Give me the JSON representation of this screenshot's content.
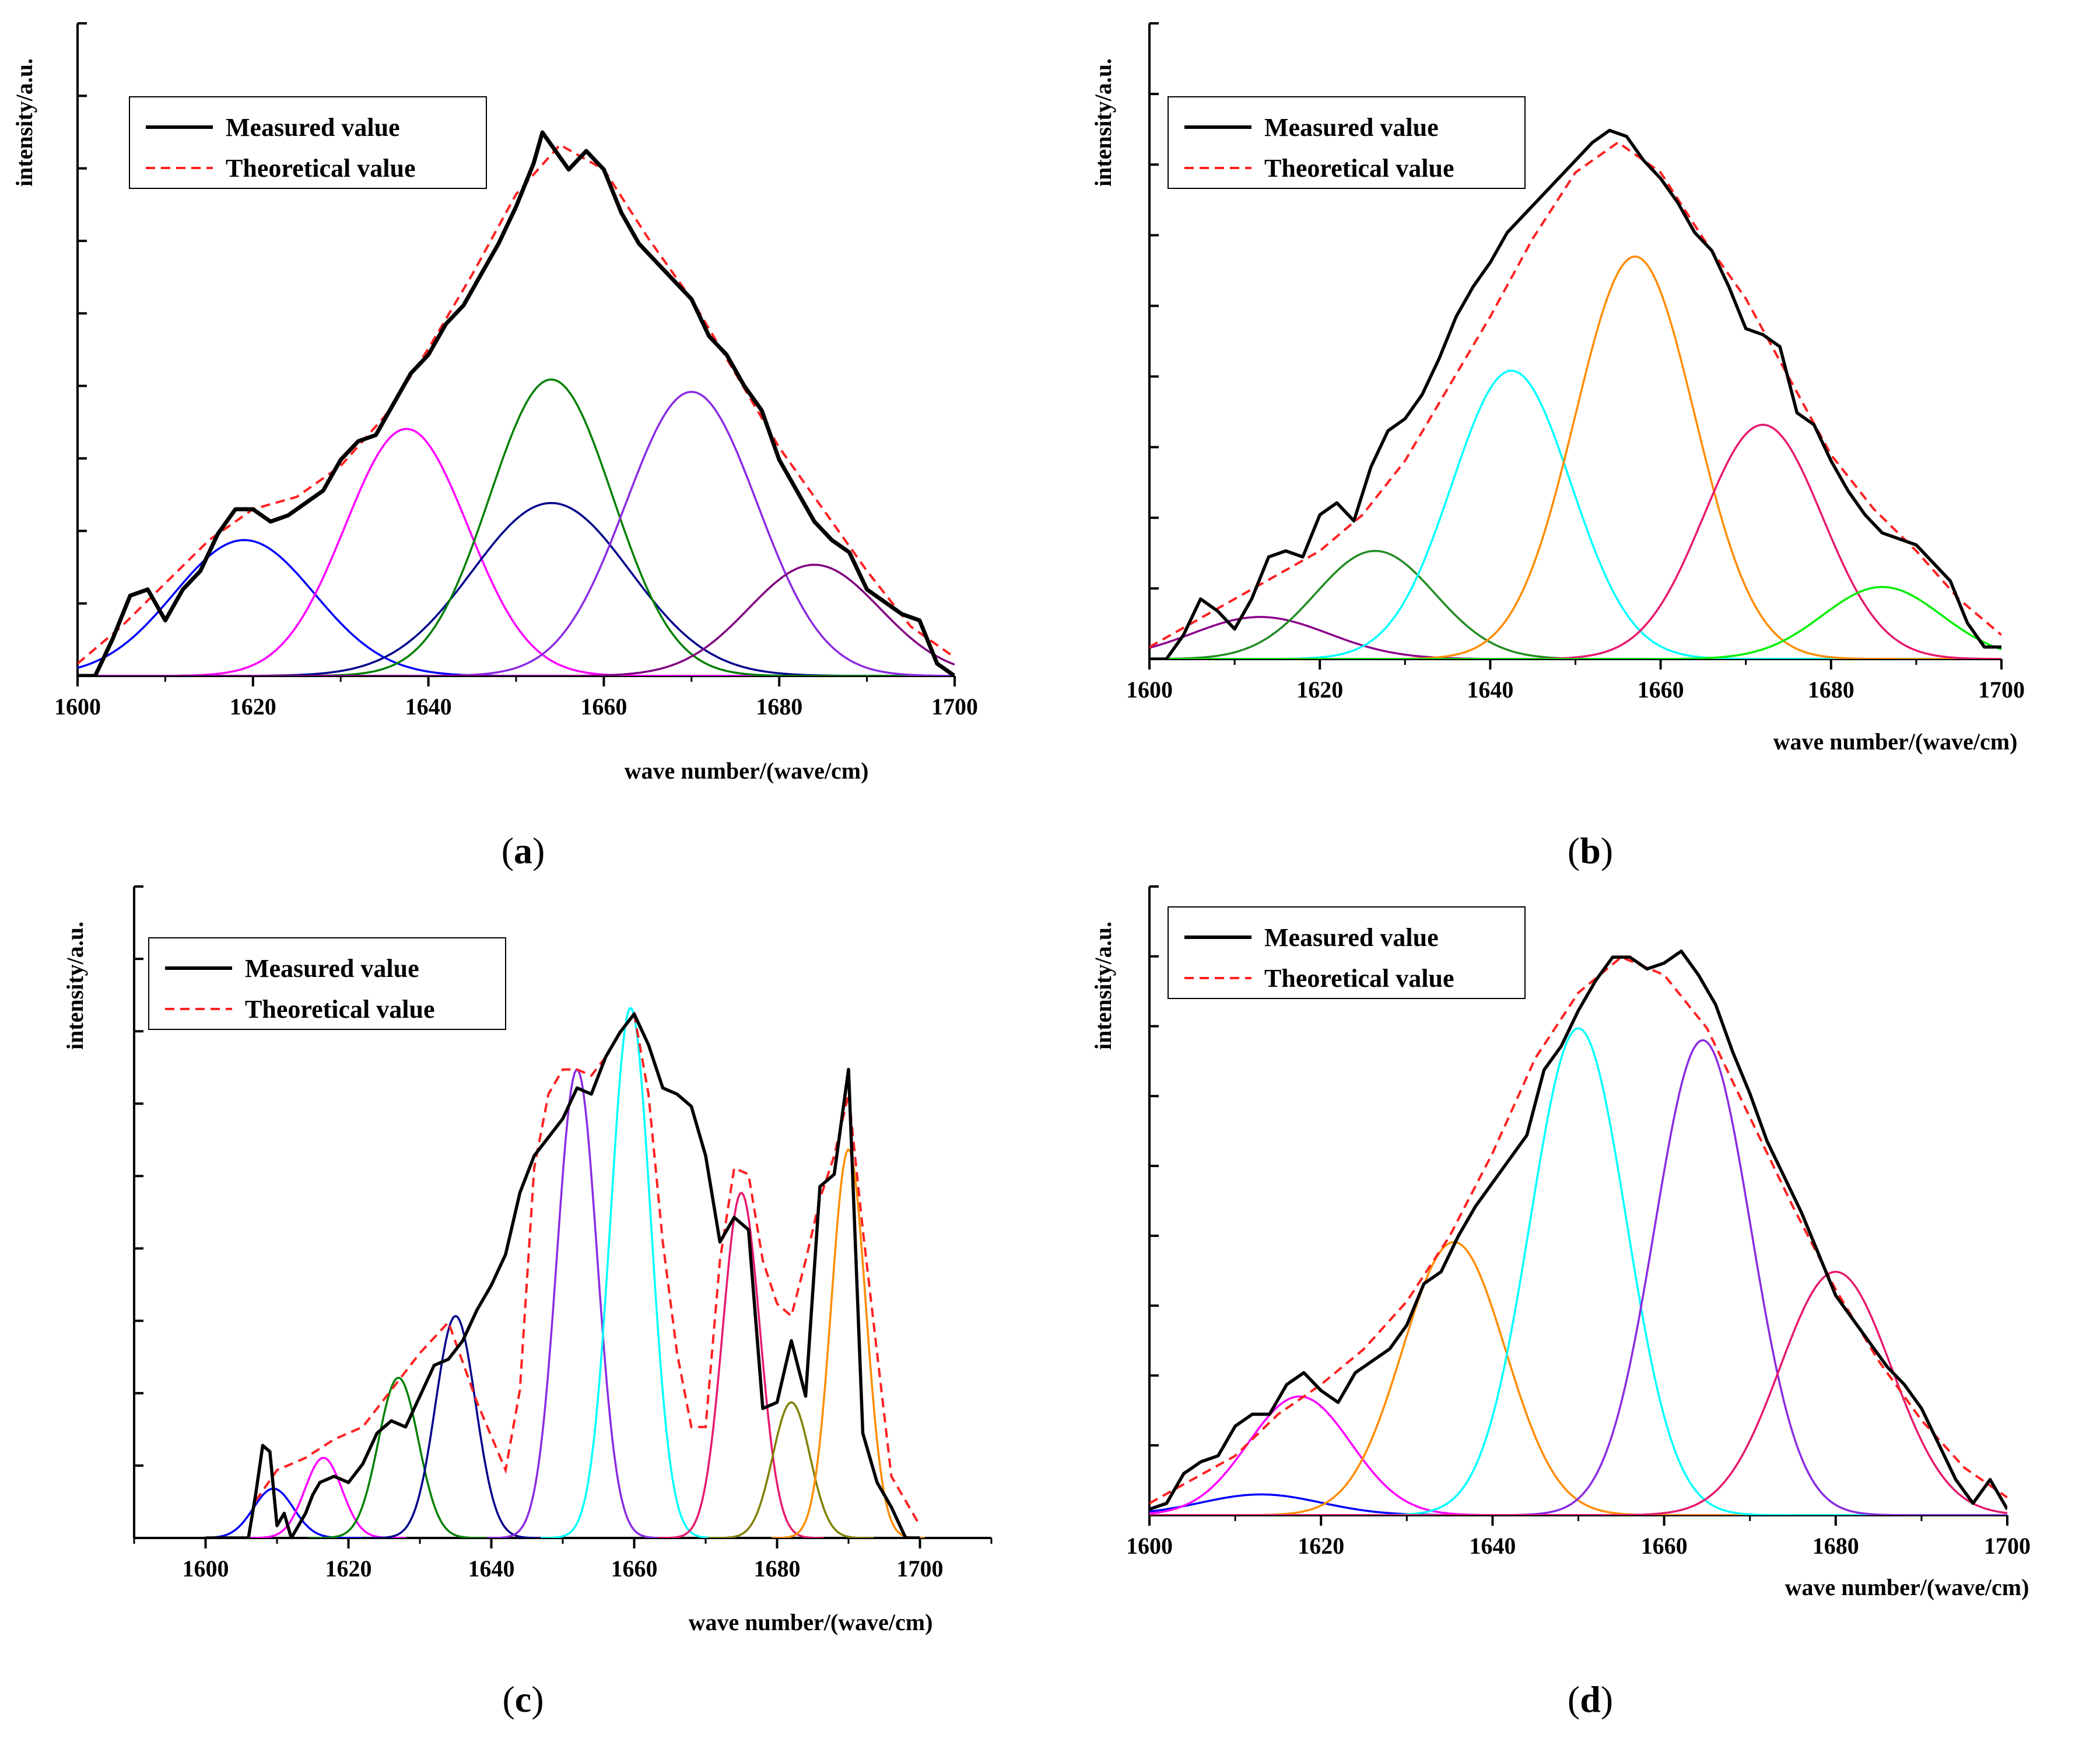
{
  "chart_data": [
    {
      "panel": "a",
      "type": "line",
      "ylabel": "intensity/a.u.",
      "xlabel": "wave number/(wave/cm)",
      "xlim": [
        1600,
        1700
      ],
      "xticks": [
        "1600",
        "1620",
        "1640",
        "1660",
        "1680",
        "1700"
      ],
      "ylim": [
        0,
        1
      ],
      "legend": {
        "position": "top-left",
        "entries": [
          "Measured value",
          "Theoretical value"
        ]
      },
      "measured": {
        "name": "Measured value",
        "x": [
          1600,
          1602,
          1604,
          1606,
          1608,
          1610,
          1612,
          1614,
          1616,
          1618,
          1620,
          1622,
          1624,
          1626,
          1628,
          1630,
          1632,
          1634,
          1636,
          1638,
          1640,
          1642,
          1644,
          1646,
          1648,
          1650,
          1652,
          1653,
          1654,
          1656,
          1658,
          1660,
          1662,
          1664,
          1666,
          1668,
          1670,
          1672,
          1674,
          1676,
          1678,
          1680,
          1682,
          1684,
          1686,
          1688,
          1690,
          1692,
          1694,
          1696,
          1698,
          1700
        ],
        "y": [
          0.0,
          0.0,
          0.06,
          0.13,
          0.14,
          0.09,
          0.14,
          0.17,
          0.23,
          0.27,
          0.27,
          0.25,
          0.26,
          0.28,
          0.3,
          0.35,
          0.38,
          0.39,
          0.44,
          0.49,
          0.52,
          0.57,
          0.6,
          0.65,
          0.7,
          0.76,
          0.83,
          0.88,
          0.86,
          0.82,
          0.85,
          0.82,
          0.75,
          0.7,
          0.67,
          0.64,
          0.61,
          0.55,
          0.52,
          0.47,
          0.43,
          0.35,
          0.3,
          0.25,
          0.22,
          0.2,
          0.14,
          0.12,
          0.1,
          0.09,
          0.02,
          0.0
        ]
      },
      "theoretical": {
        "name": "Theoretical value",
        "x": [
          1600,
          1605,
          1610,
          1615,
          1620,
          1625,
          1630,
          1635,
          1640,
          1645,
          1650,
          1655,
          1660,
          1665,
          1670,
          1675,
          1680,
          1685,
          1690,
          1695,
          1700
        ],
        "y": [
          0.02,
          0.08,
          0.15,
          0.22,
          0.27,
          0.29,
          0.34,
          0.42,
          0.53,
          0.65,
          0.78,
          0.86,
          0.82,
          0.71,
          0.61,
          0.49,
          0.37,
          0.27,
          0.17,
          0.08,
          0.03
        ]
      },
      "components": [
        {
          "color": "#0000ff",
          "center": 1619,
          "amplitude": 0.22,
          "sigma": 8
        },
        {
          "color": "#ff00ff",
          "center": 1637.5,
          "amplitude": 0.4,
          "sigma": 7
        },
        {
          "color": "#00008b",
          "center": 1654,
          "amplitude": 0.28,
          "sigma": 9
        },
        {
          "color": "#008000",
          "center": 1654,
          "amplitude": 0.48,
          "sigma": 7
        },
        {
          "color": "#8a2be2",
          "center": 1670,
          "amplitude": 0.46,
          "sigma": 7.5
        },
        {
          "color": "#800080",
          "center": 1684,
          "amplitude": 0.18,
          "sigma": 7.5
        }
      ],
      "label": "(a)"
    },
    {
      "panel": "b",
      "type": "line",
      "ylabel": "intensity/a.u.",
      "xlabel": "wave number/(wave/cm)",
      "xlim": [
        1600,
        1700
      ],
      "xticks": [
        "1600",
        "1620",
        "1640",
        "1660",
        "1680",
        "1700"
      ],
      "ylim": [
        0,
        1
      ],
      "legend": {
        "position": "top-left",
        "entries": [
          "Measured value",
          "Theoretical value"
        ]
      },
      "measured": {
        "name": "Measured value",
        "x": [
          1600,
          1602,
          1604,
          1606,
          1608,
          1610,
          1612,
          1614,
          1616,
          1618,
          1620,
          1622,
          1624,
          1626,
          1628,
          1630,
          1632,
          1634,
          1636,
          1638,
          1640,
          1642,
          1644,
          1646,
          1648,
          1650,
          1652,
          1654,
          1656,
          1658,
          1660,
          1662,
          1664,
          1666,
          1668,
          1670,
          1672,
          1674,
          1676,
          1678,
          1680,
          1682,
          1684,
          1686,
          1688,
          1690,
          1692,
          1694,
          1696,
          1698,
          1700
        ],
        "y": [
          0.0,
          0.0,
          0.04,
          0.1,
          0.08,
          0.05,
          0.1,
          0.17,
          0.18,
          0.17,
          0.24,
          0.26,
          0.23,
          0.32,
          0.38,
          0.4,
          0.44,
          0.5,
          0.57,
          0.62,
          0.66,
          0.71,
          0.74,
          0.77,
          0.8,
          0.83,
          0.86,
          0.88,
          0.87,
          0.83,
          0.8,
          0.76,
          0.71,
          0.68,
          0.62,
          0.55,
          0.54,
          0.52,
          0.41,
          0.39,
          0.33,
          0.28,
          0.24,
          0.21,
          0.2,
          0.19,
          0.16,
          0.13,
          0.06,
          0.02,
          0.02
        ]
      },
      "theoretical": {
        "name": "Theoretical value",
        "x": [
          1600,
          1605,
          1610,
          1615,
          1620,
          1625,
          1630,
          1635,
          1640,
          1645,
          1650,
          1655,
          1660,
          1665,
          1670,
          1675,
          1680,
          1685,
          1690,
          1695,
          1700
        ],
        "y": [
          0.02,
          0.06,
          0.1,
          0.14,
          0.18,
          0.24,
          0.33,
          0.45,
          0.57,
          0.7,
          0.81,
          0.86,
          0.81,
          0.7,
          0.6,
          0.47,
          0.34,
          0.25,
          0.18,
          0.1,
          0.04
        ]
      },
      "components": [
        {
          "color": "#8b008b",
          "center": 1613,
          "amplitude": 0.07,
          "sigma": 8
        },
        {
          "color": "#228b22",
          "center": 1626.5,
          "amplitude": 0.18,
          "sigma": 7
        },
        {
          "color": "#00ffff",
          "center": 1642.5,
          "amplitude": 0.48,
          "sigma": 7
        },
        {
          "color": "#ff8c00",
          "center": 1657,
          "amplitude": 0.67,
          "sigma": 7
        },
        {
          "color": "#e6196e",
          "center": 1672,
          "amplitude": 0.39,
          "sigma": 7
        },
        {
          "color": "#00ee00",
          "center": 1686,
          "amplitude": 0.12,
          "sigma": 7
        }
      ],
      "label": "(b)"
    },
    {
      "panel": "c",
      "type": "line",
      "ylabel": "intensity/a.u.",
      "xlabel": "wave number/(wave/cm)",
      "xlim": [
        1590,
        1710
      ],
      "xticks": [
        "1600",
        "1620",
        "1640",
        "1660",
        "1680",
        "1700"
      ],
      "ylim": [
        0,
        1
      ],
      "legend": {
        "position": "top-left",
        "entries": [
          "Measured value",
          "Theoretical value"
        ]
      },
      "measured": {
        "name": "Measured value",
        "x": [
          1600,
          1606,
          1607,
          1608,
          1609,
          1610,
          1611,
          1612,
          1613,
          1614,
          1615,
          1616,
          1618,
          1620,
          1622,
          1624,
          1626,
          1628,
          1630,
          1632,
          1634,
          1636,
          1638,
          1640,
          1642,
          1644,
          1646,
          1648,
          1650,
          1652,
          1654,
          1656,
          1658,
          1660,
          1662,
          1664,
          1666,
          1668,
          1670,
          1672,
          1674,
          1676,
          1678,
          1680,
          1682,
          1684,
          1686,
          1688,
          1690,
          1692,
          1694,
          1696,
          1698,
          1700
        ],
        "y": [
          0,
          0,
          0.07,
          0.15,
          0.14,
          0.02,
          0.04,
          0.0,
          0.02,
          0.04,
          0.07,
          0.09,
          0.1,
          0.09,
          0.12,
          0.17,
          0.19,
          0.18,
          0.23,
          0.28,
          0.29,
          0.32,
          0.37,
          0.41,
          0.46,
          0.56,
          0.62,
          0.65,
          0.68,
          0.73,
          0.72,
          0.78,
          0.82,
          0.85,
          0.8,
          0.73,
          0.72,
          0.7,
          0.62,
          0.48,
          0.52,
          0.5,
          0.21,
          0.22,
          0.32,
          0.23,
          0.57,
          0.59,
          0.76,
          0.17,
          0.09,
          0.05,
          0.0,
          0.0
        ]
      },
      "theoretical": {
        "name": "Theoretical value",
        "x": [
          1607,
          1610,
          1614,
          1618,
          1622,
          1626,
          1630,
          1634,
          1638,
          1642,
          1644,
          1646,
          1648,
          1650,
          1652,
          1654,
          1656,
          1658,
          1660,
          1662,
          1664,
          1666,
          1668,
          1670,
          1672,
          1674,
          1676,
          1678,
          1680,
          1682,
          1684,
          1686,
          1688,
          1690,
          1692,
          1696,
          1700
        ],
        "y": [
          0.06,
          0.11,
          0.13,
          0.16,
          0.18,
          0.24,
          0.3,
          0.35,
          0.22,
          0.11,
          0.24,
          0.6,
          0.72,
          0.76,
          0.76,
          0.75,
          0.78,
          0.82,
          0.85,
          0.72,
          0.48,
          0.3,
          0.18,
          0.18,
          0.45,
          0.6,
          0.59,
          0.45,
          0.38,
          0.36,
          0.45,
          0.55,
          0.62,
          0.72,
          0.5,
          0.1,
          0.02
        ]
      },
      "components": [
        {
          "color": "#0000ff",
          "center": 1609.5,
          "amplitude": 0.08,
          "sigma": 2.8
        },
        {
          "color": "#ff00ff",
          "center": 1616.5,
          "amplitude": 0.13,
          "sigma": 2.6
        },
        {
          "color": "#008000",
          "center": 1627,
          "amplitude": 0.26,
          "sigma": 2.8
        },
        {
          "color": "#00008b",
          "center": 1635,
          "amplitude": 0.36,
          "sigma": 2.8
        },
        {
          "color": "#8a2be2",
          "center": 1652,
          "amplitude": 0.76,
          "sigma": 2.8
        },
        {
          "color": "#00ffff",
          "center": 1659.5,
          "amplitude": 0.86,
          "sigma": 2.8
        },
        {
          "color": "#e6196e",
          "center": 1675,
          "amplitude": 0.56,
          "sigma": 2.6
        },
        {
          "color": "#808000",
          "center": 1682,
          "amplitude": 0.22,
          "sigma": 2.6
        },
        {
          "color": "#ff8c00",
          "center": 1690,
          "amplitude": 0.63,
          "sigma": 2.4
        }
      ],
      "label": "(c)"
    },
    {
      "panel": "d",
      "type": "line",
      "ylabel": "intensity/a.u.",
      "xlabel": "wave number/(wave/cm)",
      "xlim": [
        1600,
        1700
      ],
      "xticks": [
        "1600",
        "1620",
        "1640",
        "1660",
        "1680",
        "1700"
      ],
      "ylim": [
        0,
        1
      ],
      "legend": {
        "position": "top-left",
        "entries": [
          "Measured value",
          "Theoretical value"
        ]
      },
      "measured": {
        "name": "Measured value",
        "x": [
          1600,
          1602,
          1604,
          1606,
          1608,
          1610,
          1612,
          1614,
          1616,
          1618,
          1620,
          1622,
          1624,
          1626,
          1628,
          1630,
          1632,
          1634,
          1636,
          1638,
          1640,
          1642,
          1644,
          1646,
          1648,
          1650,
          1652,
          1654,
          1656,
          1658,
          1660,
          1662,
          1664,
          1666,
          1668,
          1670,
          1672,
          1674,
          1676,
          1678,
          1680,
          1682,
          1684,
          1686,
          1688,
          1690,
          1692,
          1694,
          1696,
          1698,
          1700
        ],
        "y": [
          0.01,
          0.02,
          0.07,
          0.09,
          0.1,
          0.15,
          0.17,
          0.17,
          0.22,
          0.24,
          0.21,
          0.19,
          0.24,
          0.26,
          0.28,
          0.32,
          0.39,
          0.41,
          0.47,
          0.52,
          0.56,
          0.6,
          0.64,
          0.75,
          0.79,
          0.85,
          0.9,
          0.94,
          0.94,
          0.92,
          0.93,
          0.95,
          0.91,
          0.86,
          0.78,
          0.71,
          0.63,
          0.57,
          0.51,
          0.44,
          0.37,
          0.33,
          0.29,
          0.25,
          0.22,
          0.18,
          0.12,
          0.06,
          0.02,
          0.06,
          0.01
        ]
      },
      "theoretical": {
        "name": "Theoretical value",
        "x": [
          1600,
          1605,
          1610,
          1615,
          1620,
          1625,
          1630,
          1635,
          1640,
          1645,
          1650,
          1655,
          1660,
          1665,
          1670,
          1675,
          1680,
          1685,
          1690,
          1695,
          1700
        ],
        "y": [
          0.02,
          0.06,
          0.1,
          0.17,
          0.22,
          0.28,
          0.36,
          0.47,
          0.61,
          0.77,
          0.88,
          0.94,
          0.91,
          0.82,
          0.67,
          0.52,
          0.38,
          0.26,
          0.16,
          0.08,
          0.03
        ]
      },
      "components": [
        {
          "color": "#0000ff",
          "center": 1613,
          "amplitude": 0.035,
          "sigma": 7
        },
        {
          "color": "#ff00ff",
          "center": 1617.5,
          "amplitude": 0.2,
          "sigma": 6
        },
        {
          "color": "#ff8c00",
          "center": 1635.5,
          "amplitude": 0.46,
          "sigma": 6
        },
        {
          "color": "#00ffff",
          "center": 1650,
          "amplitude": 0.82,
          "sigma": 5.6
        },
        {
          "color": "#8a2be2",
          "center": 1664.5,
          "amplitude": 0.8,
          "sigma": 5.6
        },
        {
          "color": "#e6196e",
          "center": 1680,
          "amplitude": 0.41,
          "sigma": 6.5
        }
      ],
      "label": "(d)"
    }
  ]
}
